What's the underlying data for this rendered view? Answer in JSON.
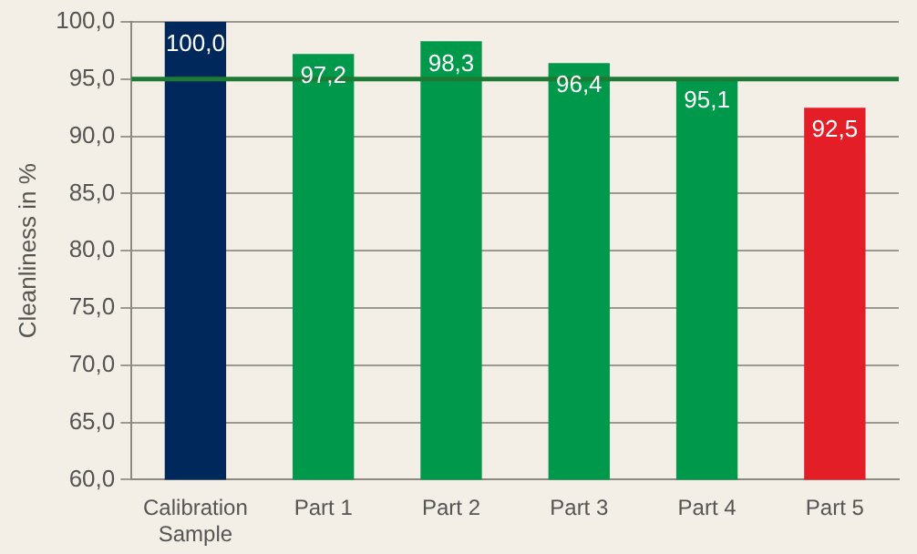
{
  "chart_data": {
    "type": "bar",
    "ylabel": "Cleanliness in %",
    "categories": [
      "Calibration Sample",
      "Part 1",
      "Part 2",
      "Part 3",
      "Part 4",
      "Part 5"
    ],
    "values": [
      100.0,
      97.2,
      98.3,
      96.4,
      95.1,
      92.5
    ],
    "colors": [
      "#00285a",
      "#00984a",
      "#00984a",
      "#00984a",
      "#00984a",
      "#e41e26"
    ],
    "value_labels": [
      "100,0",
      "97,2",
      "98,3",
      "96,4",
      "95,1",
      "92,5"
    ],
    "ylim": [
      60,
      100
    ],
    "yticks": [
      {
        "value": 60,
        "label": "60,0"
      },
      {
        "value": 65,
        "label": "65,0"
      },
      {
        "value": 70,
        "label": "70,0"
      },
      {
        "value": 75,
        "label": "75,0"
      },
      {
        "value": 80,
        "label": "80,0"
      },
      {
        "value": 85,
        "label": "85,0"
      },
      {
        "value": 90,
        "label": "90,0"
      },
      {
        "value": 95,
        "label": "95,0"
      },
      {
        "value": 100,
        "label": "100,0"
      }
    ],
    "grid": "y",
    "ref_lines": [
      {
        "axis": "y",
        "value": 95,
        "color": "#1d7a34"
      }
    ]
  }
}
